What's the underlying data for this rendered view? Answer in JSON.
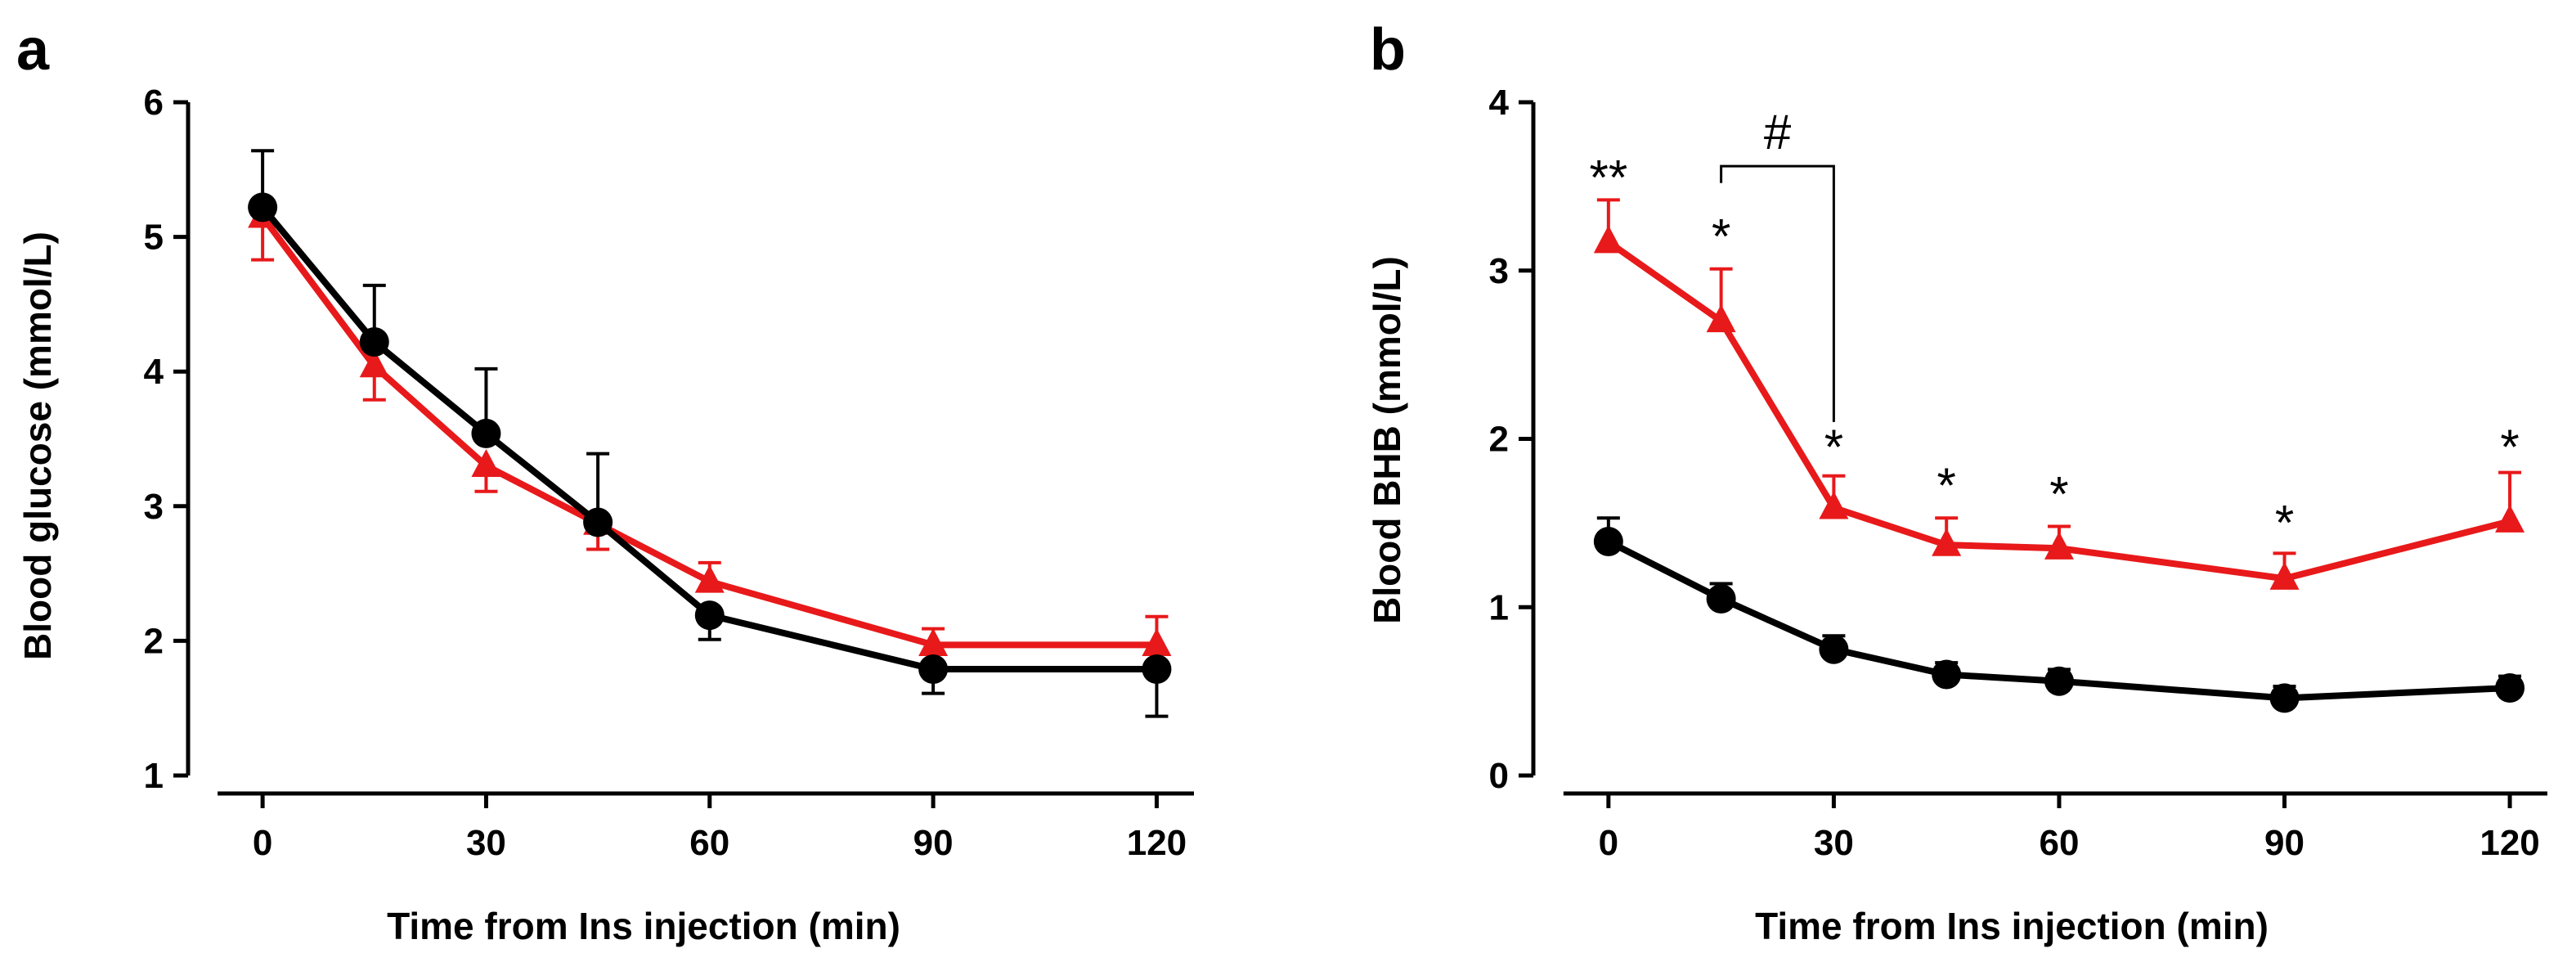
{
  "colors": {
    "control": "#000000",
    "treatment": "#e8191a"
  },
  "chart_data": [
    {
      "panel": "a",
      "type": "line",
      "title": "",
      "xlabel": "Time from Ins injection (min)",
      "ylabel": "Blood glucose (mmol/L)",
      "xlim": [
        -10,
        125
      ],
      "ylim": [
        1,
        6
      ],
      "xticks": [
        0,
        30,
        60,
        90,
        120
      ],
      "yticks": [
        1,
        2,
        3,
        4,
        5,
        6
      ],
      "grid": false,
      "legend": "none",
      "series": [
        {
          "name": "black-circle-series",
          "color": "#000000",
          "marker": "circle",
          "x": [
            0,
            15,
            30,
            45,
            60,
            90,
            120
          ],
          "y": [
            5.22,
            4.22,
            3.54,
            2.88,
            2.19,
            1.79,
            1.79
          ],
          "err": [
            0.42,
            0.42,
            0.48,
            0.51,
            0.18,
            0.18,
            0.35
          ],
          "err_dir": [
            "up",
            "up",
            "up",
            "up",
            "down",
            "down",
            "down"
          ]
        },
        {
          "name": "red-triangle-series",
          "color": "#e8191a",
          "marker": "triangle",
          "x": [
            0,
            15,
            30,
            45,
            60,
            90,
            120
          ],
          "y": [
            5.15,
            4.04,
            3.3,
            2.87,
            2.44,
            1.97,
            1.97
          ],
          "err": [
            0.32,
            0.25,
            0.19,
            0.19,
            0.14,
            0.12,
            0.21
          ],
          "err_dir": [
            "down",
            "down",
            "down",
            "down",
            "up",
            "up",
            "up"
          ]
        }
      ],
      "annotations": []
    },
    {
      "panel": "b",
      "type": "line",
      "title": "",
      "xlabel": "Time from Ins injection (min)",
      "ylabel": "Blood BHB (mmol/L)",
      "xlim": [
        -10,
        125
      ],
      "ylim": [
        0,
        4
      ],
      "xticks": [
        0,
        30,
        60,
        90,
        120
      ],
      "yticks": [
        0,
        1,
        2,
        3,
        4
      ],
      "grid": false,
      "legend": "none",
      "series": [
        {
          "name": "black-circle-series",
          "color": "#000000",
          "marker": "circle",
          "x": [
            0,
            15,
            30,
            45,
            60,
            90,
            120
          ],
          "y": [
            1.39,
            1.05,
            0.75,
            0.6,
            0.56,
            0.46,
            0.52
          ],
          "err": [
            0.14,
            0.09,
            0.08,
            0.07,
            0.07,
            0.07,
            0.07
          ],
          "err_dir": [
            "up",
            "up",
            "up",
            "up",
            "up",
            "up",
            "up"
          ]
        },
        {
          "name": "red-triangle-series",
          "color": "#e8191a",
          "marker": "triangle",
          "x": [
            0,
            15,
            30,
            45,
            60,
            90,
            120
          ],
          "y": [
            3.17,
            2.7,
            1.59,
            1.37,
            1.35,
            1.17,
            1.51
          ],
          "err": [
            0.25,
            0.31,
            0.19,
            0.16,
            0.13,
            0.15,
            0.29
          ],
          "err_dir": [
            "up",
            "up",
            "up",
            "up",
            "up",
            "up",
            "up"
          ]
        }
      ],
      "annotations": [
        {
          "text": "**",
          "x": 0,
          "y": 3.55
        },
        {
          "text": "*",
          "x": 15,
          "y": 3.2
        },
        {
          "text": "*",
          "x": 30,
          "y": 1.95
        },
        {
          "text": "*",
          "x": 45,
          "y": 1.72
        },
        {
          "text": "*",
          "x": 60,
          "y": 1.67
        },
        {
          "text": "*",
          "x": 90,
          "y": 1.5
        },
        {
          "text": "*",
          "x": 120,
          "y": 1.95
        },
        {
          "text": "#",
          "x": 22.5,
          "y": 3.82
        }
      ],
      "bracket": {
        "x1": 15,
        "x2": 30,
        "y_top": 3.62,
        "y1_end": 3.52,
        "y2_end": 2.1
      }
    }
  ]
}
